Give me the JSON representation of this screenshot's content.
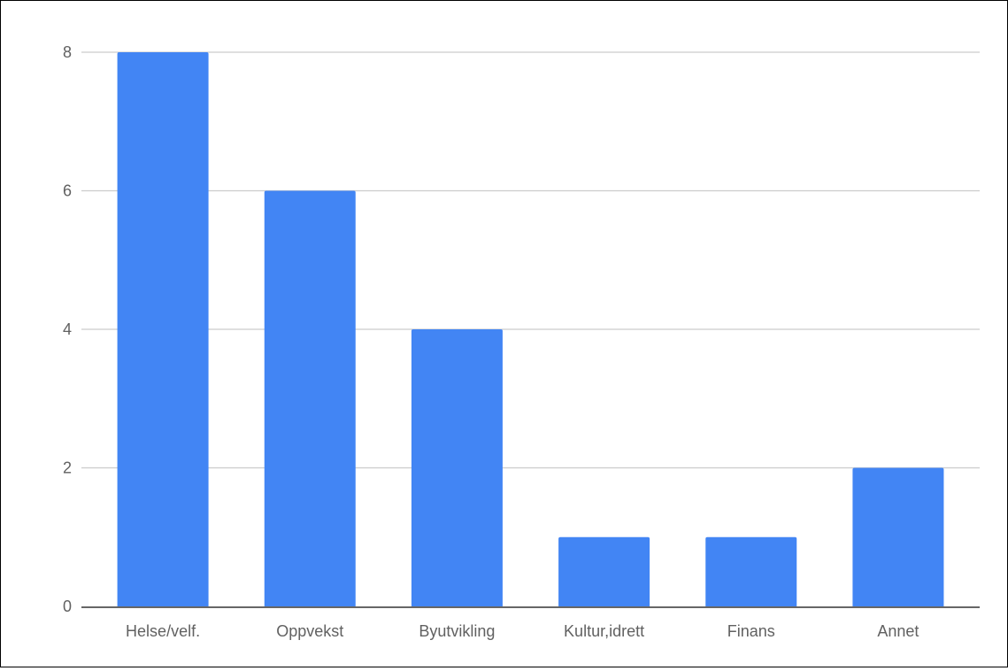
{
  "chart_data": {
    "type": "bar",
    "categories": [
      "Helse/velf.",
      "Oppvekst",
      "Byutvikling",
      "Kultur,idrett",
      "Finans",
      "Annet"
    ],
    "values": [
      8,
      6,
      4,
      1,
      1,
      2
    ],
    "ylim": [
      0,
      8
    ],
    "yticks": [
      "0",
      "2",
      "4",
      "6",
      "8"
    ],
    "grid": true,
    "legend": "none",
    "colors": {
      "bar": "#4285f4",
      "grid": "#cccccc",
      "axis": "#333333",
      "text": "#616161"
    }
  }
}
